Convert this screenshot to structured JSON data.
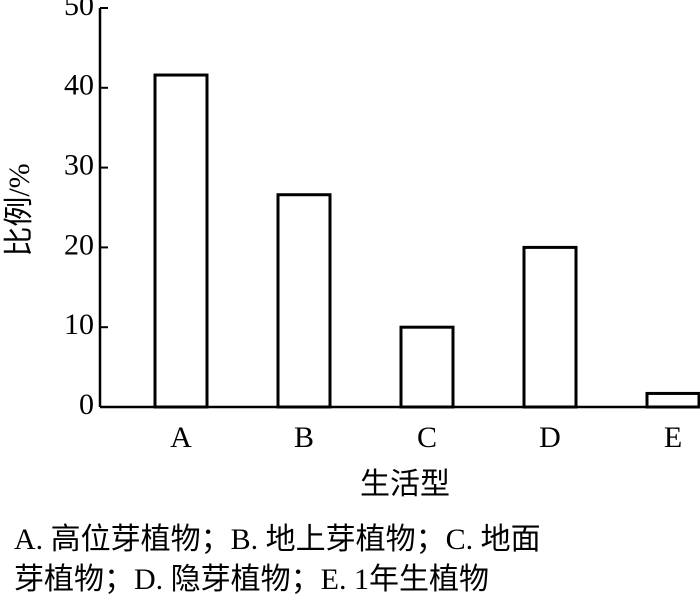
{
  "chart_data": {
    "type": "bar",
    "categories": [
      "A",
      "B",
      "C",
      "D",
      "E"
    ],
    "values": [
      41.6,
      26.6,
      10,
      20,
      1.7
    ],
    "color": "#ffffff",
    "x_label": "生活型",
    "y_label": "比例/%",
    "ylim": [
      0,
      50
    ],
    "yticks": [
      0,
      10,
      20,
      30,
      40,
      50
    ],
    "caption": [
      "A. 高位芽植物；B. 地上芽植物；C. 地面",
      "芽植物；D. 隐芽植物；E. 1年生植物"
    ]
  }
}
